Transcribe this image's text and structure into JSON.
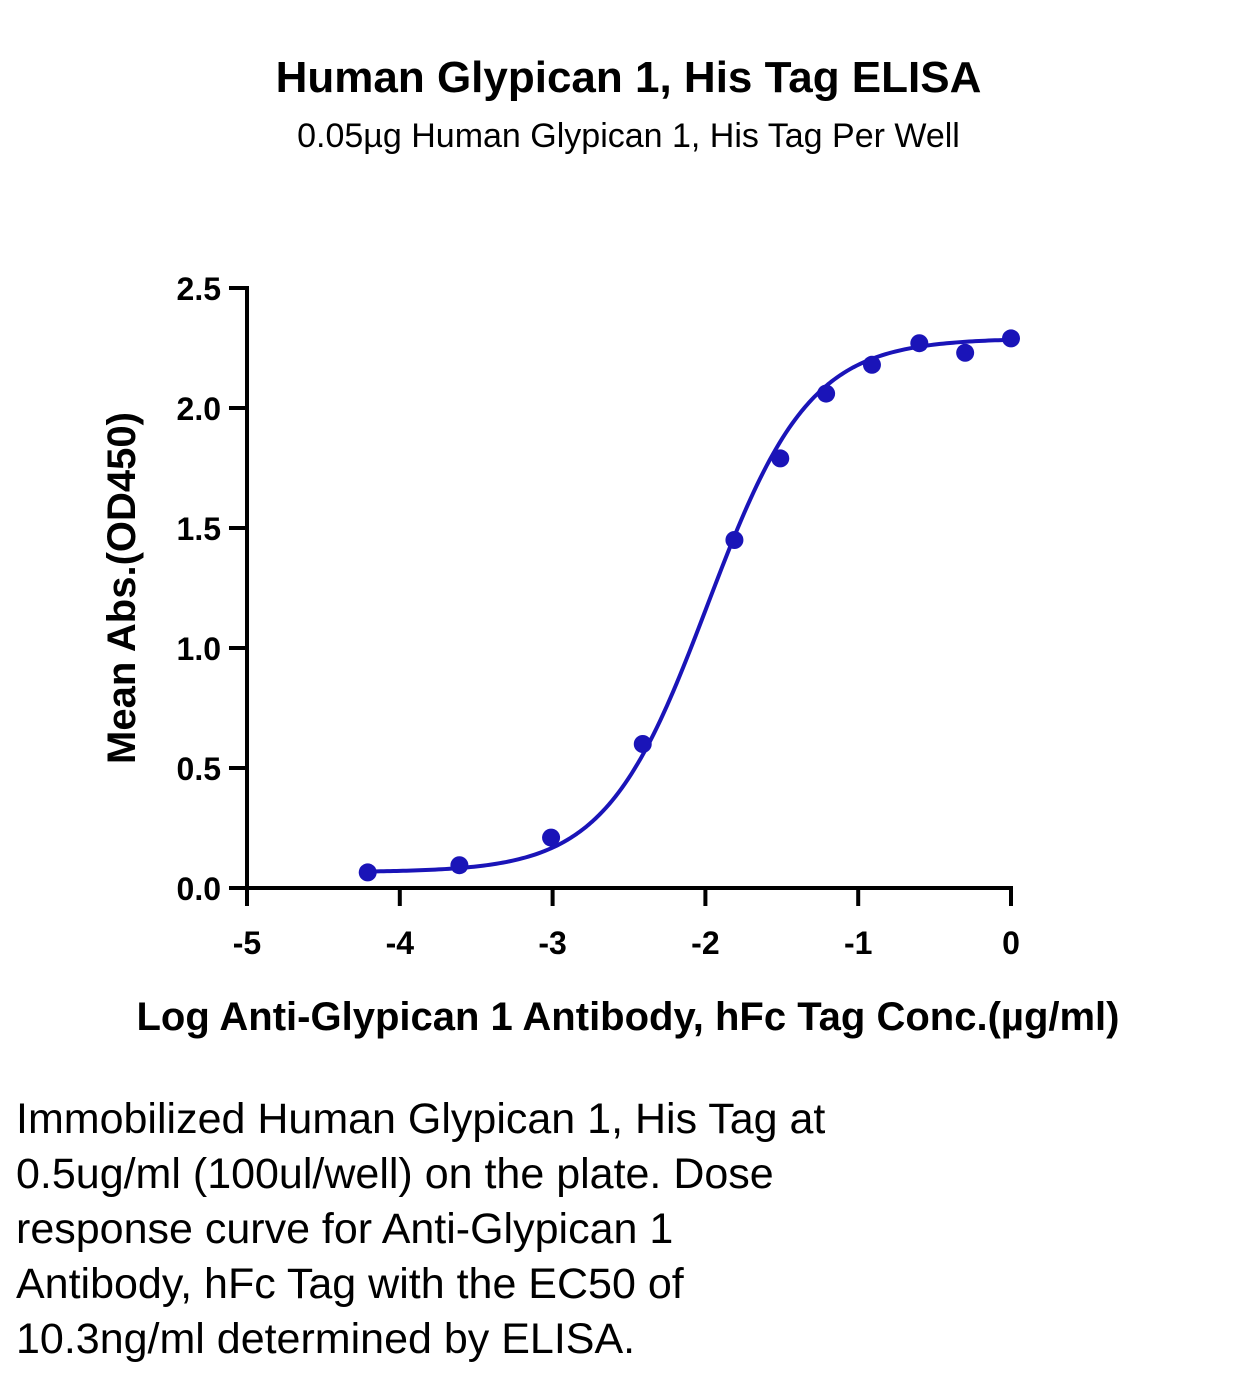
{
  "chart_data": {
    "type": "scatter",
    "title": "Human Glypican 1, His Tag ELISA",
    "subtitle": "0.05µg Human Glypican 1, His Tag Per Well",
    "xlabel": "Log Anti-Glypican 1 Antibody, hFc Tag Conc.(µg/ml)",
    "ylabel": "Mean Abs.(OD450)",
    "xlim": [
      -5,
      0
    ],
    "ylim": [
      0,
      2.5
    ],
    "x_ticks": [
      "-5",
      "-4",
      "-3",
      "-2",
      "-1",
      "0"
    ],
    "y_ticks": [
      "0.0",
      "0.5",
      "1.0",
      "1.5",
      "2.0",
      "2.5"
    ],
    "grid": false,
    "legend": "none",
    "series": [
      {
        "x": [
          -4.21,
          -3.61,
          -3.01,
          -2.41,
          -1.81,
          -1.51,
          -1.21,
          -0.91,
          -0.6,
          -0.3,
          0.0
        ],
        "y": [
          0.065,
          0.095,
          0.21,
          0.6,
          1.45,
          1.79,
          2.06,
          2.18,
          2.27,
          2.23,
          2.29
        ],
        "color": "#1a14b8",
        "marker": "circle",
        "fit_curve": {
          "model": "4PL",
          "bottom": 0.066,
          "top": 2.29,
          "logEC50": -1.987,
          "hill": 1.3
        }
      }
    ],
    "caption": "Immobilized Human Glypican 1, His Tag at\n0.5ug/ml (100ul/well) on the plate. Dose\nresponse curve for Anti-Glypican 1\nAntibody, hFc Tag with the EC50 of\n10.3ng/ml determined by ELISA."
  }
}
